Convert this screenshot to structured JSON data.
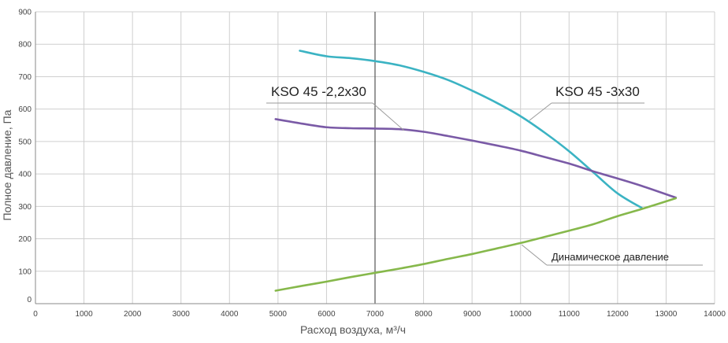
{
  "chart_data": {
    "type": "line",
    "xlabel": "Расход воздуха, м³/ч",
    "ylabel": "Полное давление, Па",
    "xlim": [
      0,
      14000
    ],
    "ylim": [
      0,
      900
    ],
    "x_ticks": [
      "0",
      "1000",
      "2000",
      "3000",
      "4000",
      "5000",
      "6000",
      "7000",
      "8000",
      "9000",
      "10000",
      "11000",
      "12000",
      "13000",
      "14000"
    ],
    "y_ticks": [
      "0",
      "100",
      "200",
      "300",
      "400",
      "500",
      "600",
      "700",
      "800",
      "900"
    ],
    "grid": true,
    "highlight_x": 7000,
    "series": [
      {
        "name": "KSO 45 -3x30",
        "color": "#3bb3c3",
        "points": [
          [
            5450,
            780
          ],
          [
            6000,
            763
          ],
          [
            6500,
            757
          ],
          [
            7000,
            748
          ],
          [
            7500,
            735
          ],
          [
            8000,
            715
          ],
          [
            8500,
            690
          ],
          [
            9000,
            657
          ],
          [
            9500,
            620
          ],
          [
            10000,
            578
          ],
          [
            10500,
            527
          ],
          [
            11000,
            470
          ],
          [
            11500,
            405
          ],
          [
            12000,
            340
          ],
          [
            12500,
            295
          ]
        ]
      },
      {
        "name": "KSO 45 -2,2x30",
        "color": "#7a5aa6",
        "points": [
          [
            4950,
            569
          ],
          [
            5500,
            555
          ],
          [
            6000,
            544
          ],
          [
            6500,
            541
          ],
          [
            7000,
            540
          ],
          [
            7500,
            538
          ],
          [
            8000,
            530
          ],
          [
            8500,
            517
          ],
          [
            9000,
            503
          ],
          [
            9500,
            488
          ],
          [
            10000,
            472
          ],
          [
            10500,
            452
          ],
          [
            11000,
            432
          ],
          [
            11500,
            408
          ],
          [
            12000,
            386
          ],
          [
            12500,
            363
          ],
          [
            13200,
            327
          ]
        ]
      },
      {
        "name": "Динамическое давление",
        "color": "#86b84b",
        "points": [
          [
            4950,
            40
          ],
          [
            5500,
            55
          ],
          [
            6000,
            68
          ],
          [
            6500,
            82
          ],
          [
            7000,
            95
          ],
          [
            7500,
            108
          ],
          [
            8000,
            122
          ],
          [
            8500,
            138
          ],
          [
            9000,
            153
          ],
          [
            9500,
            170
          ],
          [
            10000,
            187
          ],
          [
            10500,
            206
          ],
          [
            11000,
            225
          ],
          [
            11500,
            245
          ],
          [
            12000,
            270
          ],
          [
            12500,
            292
          ],
          [
            13200,
            325
          ]
        ]
      }
    ]
  }
}
